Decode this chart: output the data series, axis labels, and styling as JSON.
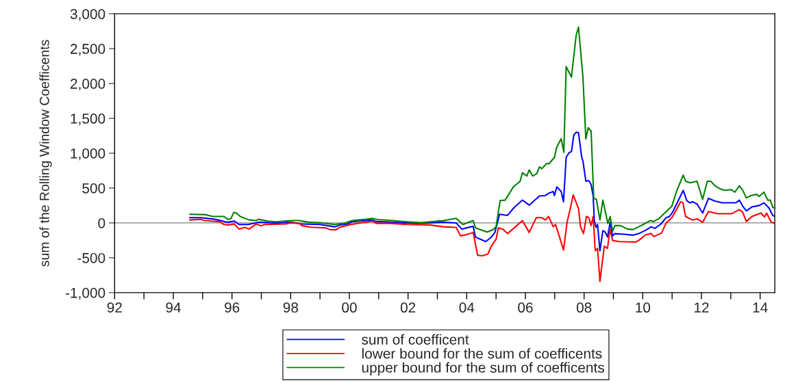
{
  "chart_data": {
    "type": "line",
    "ylabel": "sum of the Rolling Window Coefficents",
    "xlim": [
      1992,
      2014.5
    ],
    "ylim": [
      -1000,
      3000
    ],
    "xticks": [
      {
        "value": 1992,
        "label": "92"
      },
      {
        "value": 1993,
        "label": null
      },
      {
        "value": 1994,
        "label": "94"
      },
      {
        "value": 1995,
        "label": null
      },
      {
        "value": 1996,
        "label": "96"
      },
      {
        "value": 1997,
        "label": null
      },
      {
        "value": 1998,
        "label": "98"
      },
      {
        "value": 1999,
        "label": null
      },
      {
        "value": 2000,
        "label": "00"
      },
      {
        "value": 2001,
        "label": null
      },
      {
        "value": 2002,
        "label": "02"
      },
      {
        "value": 2003,
        "label": null
      },
      {
        "value": 2004,
        "label": "04"
      },
      {
        "value": 2005,
        "label": null
      },
      {
        "value": 2006,
        "label": "06"
      },
      {
        "value": 2007,
        "label": null
      },
      {
        "value": 2008,
        "label": "08"
      },
      {
        "value": 2009,
        "label": null
      },
      {
        "value": 2010,
        "label": "10"
      },
      {
        "value": 2011,
        "label": null
      },
      {
        "value": 2012,
        "label": "12"
      },
      {
        "value": 2013,
        "label": null
      },
      {
        "value": 2014,
        "label": "14"
      }
    ],
    "yticks": [
      {
        "value": -1000,
        "label": "-1,000"
      },
      -500,
      0,
      500,
      {
        "value": 1000,
        "label": "1,000"
      },
      {
        "value": 1500,
        "label": "1,500"
      },
      {
        "value": 2000,
        "label": "2,000"
      },
      {
        "value": 2500,
        "label": "2,500"
      },
      {
        "value": 3000,
        "label": "3,000"
      }
    ],
    "ref_lines": [
      {
        "axis": "y",
        "value": 0,
        "color": "#808080"
      }
    ],
    "legend": "bottom",
    "grid": false,
    "line_style": "solid",
    "marker": "none",
    "series": [
      {
        "name": "sum of coefficent",
        "color": "#0000ff",
        "x": [
          1994.56,
          1994.95,
          1995.42,
          1995.85,
          1996.08,
          1996.24,
          1996.55,
          1996.9,
          1997.52,
          1997.99,
          1998.38,
          1999.0,
          1999.51,
          1999.66,
          1999.94,
          2000.09,
          2000.79,
          2000.91,
          2001.41,
          2002.35,
          2003.21,
          2003.64,
          2003.83,
          2004.14,
          2004.22,
          2004.3,
          2004.65,
          2004.84,
          2004.96,
          2005.12,
          2005.39,
          2005.62,
          2005.9,
          2006.13,
          2006.48,
          2006.68,
          2006.79,
          2006.95,
          2006.99,
          2007.07,
          2007.22,
          2007.3,
          2007.39,
          2007.49,
          2007.57,
          2007.65,
          2007.73,
          2007.81,
          2007.92,
          2007.96,
          2008.06,
          2008.16,
          2008.24,
          2008.31,
          2008.35,
          2008.41,
          2008.46,
          2008.54,
          2008.64,
          2008.72,
          2008.8,
          2008.89,
          2008.97,
          2009.05,
          2009.36,
          2009.67,
          2009.86,
          2010.1,
          2010.29,
          2010.41,
          2010.6,
          2010.8,
          2010.91,
          2011.03,
          2011.38,
          2011.5,
          2011.61,
          2011.69,
          2011.85,
          2012.04,
          2012.24,
          2012.46,
          2012.71,
          2013.18,
          2013.29,
          2013.41,
          2013.53,
          2013.72,
          2013.96,
          2014.13,
          2014.3,
          2014.43,
          2014.47
        ],
        "values": [
          75,
          75,
          52,
          10,
          26,
          -23,
          -23,
          10,
          0,
          10,
          -16,
          -23,
          -56,
          -33,
          -16,
          16,
          42,
          20,
          10,
          -7,
          10,
          0,
          -88,
          -56,
          -49,
          -203,
          -268,
          -203,
          -137,
          124,
          108,
          222,
          327,
          255,
          386,
          392,
          425,
          451,
          392,
          516,
          451,
          304,
          941,
          1007,
          1023,
          1261,
          1301,
          1294,
          941,
          892,
          598,
          608,
          549,
          386,
          26,
          -65,
          -23,
          -399,
          -111,
          -131,
          -203,
          10,
          -186,
          -154,
          -163,
          -176,
          -154,
          -105,
          -56,
          -78,
          -23,
          75,
          92,
          163,
          467,
          320,
          288,
          304,
          271,
          141,
          353,
          314,
          288,
          288,
          327,
          239,
          173,
          229,
          248,
          288,
          216,
          108,
          98
        ]
      },
      {
        "name": "lower bound for the sum of coefficents",
        "color": "#ff0000",
        "x": [
          1994.56,
          1994.95,
          1995.03,
          1995.58,
          1995.73,
          1995.89,
          1996.08,
          1996.24,
          1996.44,
          1996.59,
          1996.82,
          1996.98,
          1997.13,
          1997.83,
          1997.99,
          1998.3,
          1998.38,
          1998.69,
          1999.2,
          1999.35,
          1999.55,
          1999.66,
          2000.05,
          2000.79,
          2000.91,
          2001.41,
          2001.96,
          2002.74,
          2003.21,
          2003.64,
          2003.79,
          2003.98,
          2004.22,
          2004.37,
          2004.53,
          2004.72,
          2004.84,
          2005.0,
          2005.08,
          2005.23,
          2005.39,
          2005.66,
          2005.9,
          2006.13,
          2006.37,
          2006.56,
          2006.68,
          2006.79,
          2006.95,
          2007.03,
          2007.3,
          2007.42,
          2007.53,
          2007.63,
          2007.81,
          2007.88,
          2007.98,
          2008.08,
          2008.16,
          2008.24,
          2008.31,
          2008.38,
          2008.46,
          2008.54,
          2008.69,
          2008.8,
          2008.88,
          2008.97,
          2009.2,
          2009.75,
          2009.86,
          2010.1,
          2010.29,
          2010.38,
          2010.64,
          2010.8,
          2010.99,
          2011.15,
          2011.29,
          2011.37,
          2011.46,
          2011.61,
          2011.69,
          2011.85,
          2012.04,
          2012.24,
          2012.55,
          2013.02,
          2013.29,
          2013.41,
          2013.53,
          2013.72,
          2014.03,
          2014.15,
          2014.22,
          2014.38,
          2014.47
        ],
        "values": [
          42,
          52,
          36,
          16,
          -23,
          -29,
          -16,
          -88,
          -65,
          -88,
          -16,
          -39,
          -23,
          -16,
          0,
          -7,
          -39,
          -62,
          -72,
          -98,
          -98,
          -65,
          -23,
          26,
          -7,
          -7,
          -23,
          -29,
          -56,
          -65,
          -186,
          -170,
          -137,
          -464,
          -471,
          -448,
          -333,
          -235,
          -72,
          -88,
          -154,
          -56,
          33,
          -137,
          75,
          75,
          42,
          92,
          -56,
          -23,
          -389,
          10,
          206,
          402,
          206,
          -56,
          -154,
          92,
          75,
          -39,
          92,
          -399,
          -366,
          -840,
          -333,
          -366,
          -88,
          -252,
          -268,
          -275,
          -252,
          -170,
          -154,
          -196,
          -144,
          0,
          75,
          190,
          304,
          288,
          92,
          59,
          42,
          59,
          10,
          163,
          131,
          131,
          190,
          150,
          20,
          92,
          141,
          85,
          141,
          10,
          0
        ]
      },
      {
        "name": "upper bound for the sum of coefficents",
        "color": "#008000",
        "x": [
          1994.56,
          1995.11,
          1995.34,
          1995.73,
          1995.85,
          1995.96,
          1996.06,
          1996.16,
          1996.28,
          1996.59,
          1996.82,
          1996.9,
          1997.21,
          1997.52,
          1997.99,
          1998.3,
          1998.61,
          1999.0,
          1999.51,
          1999.86,
          2000.09,
          2000.56,
          2000.79,
          2000.95,
          2001.41,
          2001.96,
          2002.43,
          2003.21,
          2003.64,
          2003.87,
          2004.22,
          2004.3,
          2004.69,
          2004.89,
          2005.0,
          2005.14,
          2005.31,
          2005.59,
          2005.82,
          2005.9,
          2006.05,
          2006.13,
          2006.25,
          2006.39,
          2006.48,
          2006.56,
          2006.72,
          2006.81,
          2006.99,
          2007.07,
          2007.22,
          2007.31,
          2007.39,
          2007.57,
          2007.73,
          2007.81,
          2007.96,
          2008.06,
          2008.14,
          2008.24,
          2008.33,
          2008.42,
          2008.54,
          2008.64,
          2008.81,
          2008.89,
          2008.97,
          2009.05,
          2009.24,
          2009.48,
          2009.67,
          2009.86,
          2010.06,
          2010.25,
          2010.37,
          2010.56,
          2010.8,
          2010.99,
          2011.15,
          2011.38,
          2011.46,
          2011.61,
          2011.85,
          2012.04,
          2012.2,
          2012.32,
          2012.46,
          2012.63,
          2012.79,
          2013.02,
          2013.14,
          2013.29,
          2013.41,
          2013.53,
          2013.68,
          2013.88,
          2013.96,
          2014.13,
          2014.26,
          2014.35,
          2014.43,
          2014.47
        ],
        "values": [
          124,
          118,
          92,
          92,
          52,
          59,
          150,
          140,
          92,
          42,
          33,
          52,
          26,
          16,
          33,
          33,
          10,
          3,
          -23,
          0,
          33,
          52,
          65,
          49,
          36,
          16,
          3,
          33,
          65,
          -23,
          33,
          -72,
          -131,
          -98,
          -56,
          320,
          327,
          516,
          598,
          719,
          673,
          761,
          673,
          706,
          804,
          778,
          850,
          850,
          941,
          1088,
          1209,
          1013,
          2242,
          2092,
          2690,
          2810,
          2101,
          1203,
          1366,
          1317,
          353,
          337,
          42,
          327,
          -7,
          92,
          -121,
          -39,
          -39,
          -88,
          -95,
          -56,
          -13,
          33,
          20,
          65,
          163,
          239,
          451,
          686,
          598,
          575,
          598,
          337,
          598,
          598,
          533,
          490,
          467,
          477,
          441,
          533,
          467,
          359,
          392,
          412,
          379,
          441,
          327,
          327,
          222,
          216
        ]
      }
    ]
  }
}
